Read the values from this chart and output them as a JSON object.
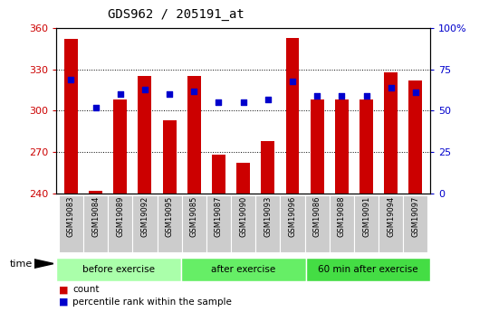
{
  "title": "GDS962 / 205191_at",
  "categories": [
    "GSM19083",
    "GSM19084",
    "GSM19089",
    "GSM19092",
    "GSM19095",
    "GSM19085",
    "GSM19087",
    "GSM19090",
    "GSM19093",
    "GSM19096",
    "GSM19086",
    "GSM19088",
    "GSM19091",
    "GSM19094",
    "GSM19097"
  ],
  "bar_values": [
    352,
    242,
    308,
    325,
    293,
    325,
    268,
    262,
    278,
    353,
    308,
    308,
    308,
    328,
    322
  ],
  "percentile_values": [
    69,
    52,
    60,
    63,
    60,
    62,
    55,
    55,
    57,
    68,
    59,
    59,
    59,
    64,
    61
  ],
  "bar_color": "#cc0000",
  "dot_color": "#0000cc",
  "ylim_left": [
    240,
    360
  ],
  "ylim_right": [
    0,
    100
  ],
  "yticks_left": [
    240,
    270,
    300,
    330,
    360
  ],
  "yticks_right": [
    0,
    25,
    50,
    75,
    100
  ],
  "groups": [
    {
      "label": "before exercise",
      "start": 0,
      "end": 5,
      "color": "#aaffaa"
    },
    {
      "label": "after exercise",
      "start": 5,
      "end": 10,
      "color": "#66ee66"
    },
    {
      "label": "60 min after exercise",
      "start": 10,
      "end": 15,
      "color": "#44dd44"
    }
  ],
  "tick_label_color_left": "#cc0000",
  "tick_label_color_right": "#0000cc",
  "plot_bg": "#ffffff",
  "xtick_bg": "#cccccc",
  "bar_width": 0.55,
  "title_fontsize": 10,
  "title_family": "monospace"
}
